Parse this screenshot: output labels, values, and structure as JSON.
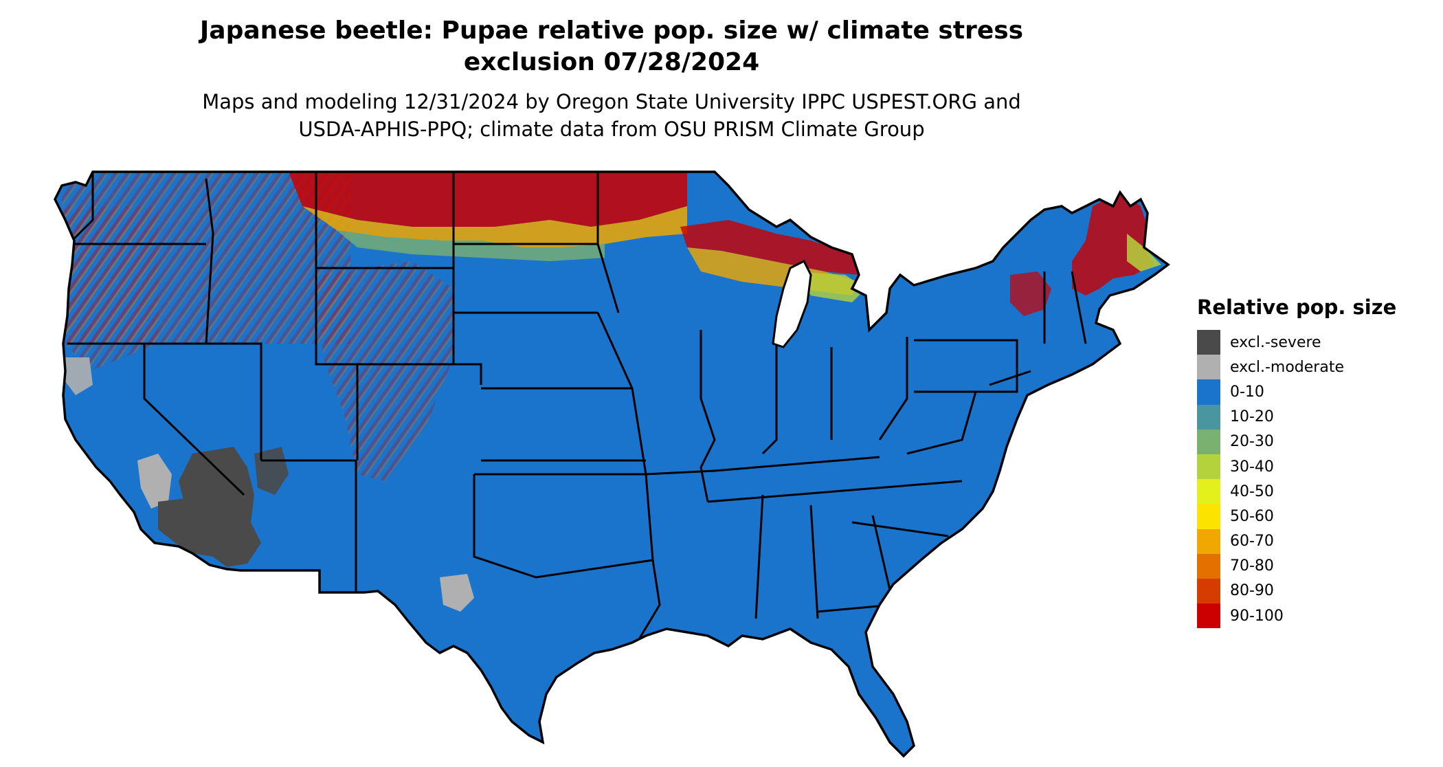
{
  "title_line1": "Japanese beetle: Pupae relative pop. size w/ climate stress",
  "title_line2": "exclusion 07/28/2024",
  "subtitle_line1": "Maps and modeling 12/31/2024 by Oregon State University IPPC USPEST.ORG and",
  "subtitle_line2": "USDA-APHIS-PPQ; climate data from OSU PRISM Climate Group",
  "legend": {
    "title": "Relative pop. size",
    "items": [
      {
        "label": "excl.-severe",
        "color": "#4a4a4a"
      },
      {
        "label": "excl.-moderate",
        "color": "#b0b0b0"
      },
      {
        "label": "0-10",
        "color": "#1a74cc"
      },
      {
        "label": "10-20",
        "color": "#4a96a0"
      },
      {
        "label": "20-30",
        "color": "#7ab070"
      },
      {
        "label": "30-40",
        "color": "#b4d23c"
      },
      {
        "label": "40-50",
        "color": "#e4f01c"
      },
      {
        "label": "50-60",
        "color": "#fce400"
      },
      {
        "label": "60-70",
        "color": "#f0a800"
      },
      {
        "label": "70-80",
        "color": "#e47000"
      },
      {
        "label": "80-90",
        "color": "#d43c00"
      },
      {
        "label": "90-100",
        "color": "#cc0000"
      }
    ]
  }
}
